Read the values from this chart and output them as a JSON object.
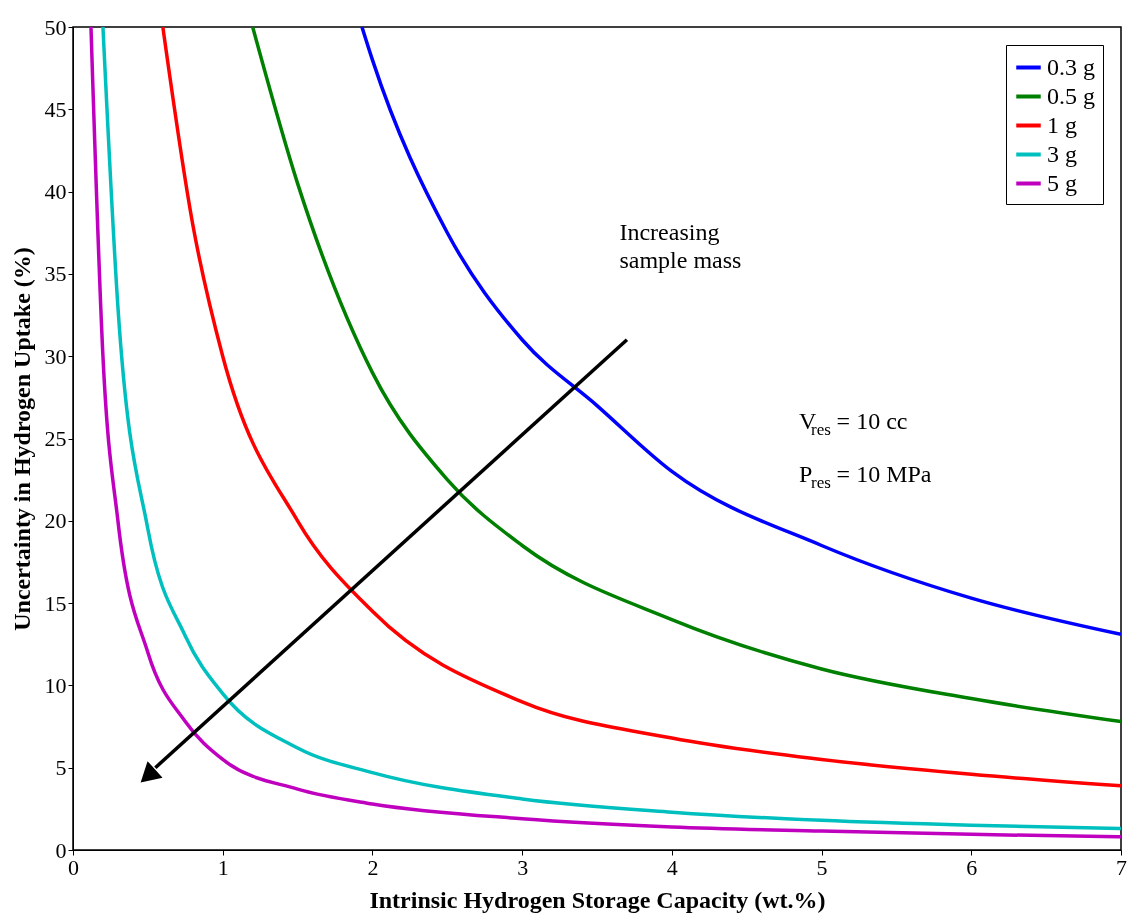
{
  "chart_data": {
    "type": "line",
    "xlabel": "Intrinsic Hydrogen Storage Capacity (wt.%)",
    "ylabel": "Uncertainty in Hydrogen Uptake (%)",
    "xlim": [
      0,
      7
    ],
    "ylim": [
      0,
      50
    ],
    "xticks": [
      0,
      1,
      2,
      3,
      4,
      5,
      6,
      7
    ],
    "yticks": [
      0,
      5,
      10,
      15,
      20,
      25,
      30,
      35,
      40,
      45,
      50
    ],
    "grid": false,
    "legend": "top right",
    "line_style": "solid",
    "series": [
      {
        "name": "0.3 g",
        "color": "#0000ff",
        "x": [
          1.93,
          2,
          2.5,
          3,
          3.5,
          4,
          5,
          6,
          7
        ],
        "values": [
          50,
          48,
          37.5,
          31,
          27,
          23,
          18.5,
          15.3,
          13.1
        ]
      },
      {
        "name": "0.5 g",
        "color": "#008000",
        "x": [
          1.2,
          1.5,
          2,
          2.5,
          3,
          4,
          5,
          6,
          7
        ],
        "values": [
          50,
          40.5,
          29,
          22.5,
          18.5,
          14,
          11,
          9.2,
          7.8
        ]
      },
      {
        "name": "1 g",
        "color": "#ff0000",
        "x": [
          0.6,
          0.8,
          1,
          1.5,
          2,
          3,
          4,
          5,
          6,
          7
        ],
        "values": [
          50,
          38,
          30,
          20,
          14.5,
          9,
          6.8,
          5.5,
          4.6,
          3.9
        ]
      },
      {
        "name": "3 g",
        "color": "#00bfbf",
        "x": [
          0.2,
          0.3,
          0.5,
          0.75,
          1,
          1.5,
          2,
          3,
          4,
          5,
          6,
          7
        ],
        "values": [
          50,
          33,
          19.5,
          13,
          9.5,
          6.2,
          4.7,
          3.1,
          2.3,
          1.8,
          1.5,
          1.3
        ]
      },
      {
        "name": "5 g",
        "color": "#bf00bf",
        "x": [
          0.12,
          0.2,
          0.3,
          0.5,
          0.75,
          1,
          1.5,
          2,
          3,
          4,
          5,
          6,
          7
        ],
        "values": [
          50,
          30,
          20,
          12,
          7.8,
          5.5,
          3.7,
          2.8,
          1.9,
          1.4,
          1.15,
          0.95,
          0.8
        ]
      }
    ],
    "annotations": [
      "Increasing\nsample mass",
      "V$_{res}$ = 10 cc",
      "P$_{res}$ = 10 MPa"
    ]
  }
}
